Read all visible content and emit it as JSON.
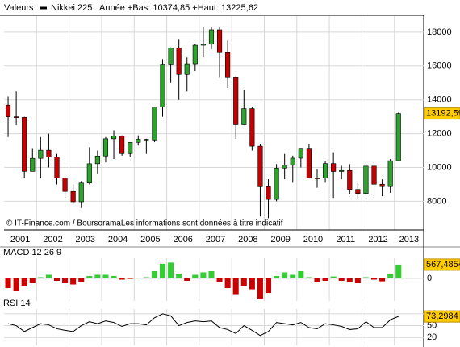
{
  "chart_data": [
    {
      "type": "candlestick",
      "title": "Valeurs",
      "subtitle": "Année +Bas: 10374,85 +Haut: 13225,62",
      "annotation": "© IT-Finance.com / BoursoramaLes informations sont données à titre indicatif",
      "series_name": "Nikkei 225",
      "x": [
        2001.125,
        2001.375,
        2001.625,
        2001.875,
        2002.125,
        2002.375,
        2002.625,
        2002.875,
        2003.125,
        2003.375,
        2003.625,
        2003.875,
        2004.125,
        2004.375,
        2004.625,
        2004.875,
        2005.125,
        2005.375,
        2005.625,
        2005.875,
        2006.125,
        2006.375,
        2006.625,
        2006.875,
        2007.125,
        2007.375,
        2007.625,
        2007.875,
        2008.125,
        2008.375,
        2008.625,
        2008.875,
        2009.125,
        2009.375,
        2009.625,
        2009.875,
        2010.125,
        2010.375,
        2010.625,
        2010.875,
        2011.125,
        2011.375,
        2011.625,
        2011.875,
        2012.125,
        2012.375,
        2012.625,
        2012.875,
        2013.125
      ],
      "open": [
        13690,
        13000,
        12970,
        9770,
        10540,
        11020,
        10620,
        9380,
        8580,
        7970,
        9080,
        10220,
        10680,
        11700,
        11860,
        10820,
        11490,
        11670,
        11580,
        13570,
        16110,
        17060,
        15500,
        16130,
        17230,
        17290,
        18140,
        16790,
        15310,
        12530,
        13480,
        11260,
        8860,
        8110,
        9960,
        10130,
        10550,
        11090,
        9380,
        9370,
        10230,
        9760,
        9820,
        8700,
        8460,
        10080,
        9010,
        8870,
        10400
      ],
      "high": [
        14200,
        14500,
        13000,
        11100,
        11800,
        12000,
        10800,
        9500,
        9000,
        9200,
        11200,
        11000,
        11800,
        12200,
        11900,
        11500,
        11900,
        11700,
        13600,
        16400,
        17100,
        17600,
        16500,
        17300,
        18300,
        18300,
        18300,
        17500,
        15400,
        14600,
        13600,
        11400,
        9300,
        10200,
        10800,
        10700,
        11100,
        11400,
        9900,
        10400,
        10900,
        10100,
        10200,
        9100,
        10300,
        10200,
        9300,
        10500,
        13250
      ],
      "low": [
        11800,
        12500,
        9400,
        9800,
        9400,
        10000,
        9000,
        8200,
        7850,
        7600,
        9000,
        9600,
        10300,
        10500,
        10700,
        10600,
        11300,
        10800,
        11500,
        13000,
        15000,
        14000,
        14500,
        15700,
        16500,
        17000,
        15300,
        14700,
        11700,
        12500,
        11000,
        7100,
        7000,
        8000,
        9300,
        9100,
        10000,
        9500,
        8800,
        9100,
        8200,
        9300,
        8400,
        8100,
        8300,
        8300,
        8300,
        8500,
        10400
      ],
      "close": [
        13000,
        12970,
        9770,
        10540,
        11020,
        10620,
        9380,
        8580,
        7970,
        9080,
        10220,
        10680,
        11700,
        11860,
        10820,
        11490,
        11670,
        11580,
        13570,
        16110,
        17060,
        15500,
        16130,
        17230,
        17290,
        18140,
        16790,
        15310,
        12530,
        13480,
        11260,
        8860,
        8110,
        9960,
        10130,
        10550,
        11090,
        9380,
        9370,
        10230,
        9760,
        9820,
        8700,
        8460,
        10080,
        9010,
        8870,
        10400,
        13193
      ],
      "up_color": "#2ea12e",
      "down_color": "#c40000",
      "xlim": [
        2001,
        2013.9
      ],
      "xticks": [
        2001,
        2002,
        2003,
        2004,
        2005,
        2006,
        2007,
        2008,
        2009,
        2010,
        2011,
        2012,
        2013
      ],
      "ylim": [
        6300,
        18950
      ],
      "yticks": [
        8000,
        10000,
        12000,
        14000,
        16000,
        18000
      ],
      "last_label": {
        "value": 13192.59,
        "label": "13192,59"
      },
      "grid": true
    },
    {
      "type": "bar",
      "title": "MACD 12 26 9",
      "x": [
        2001.125,
        2001.375,
        2001.625,
        2001.875,
        2002.125,
        2002.375,
        2002.625,
        2002.875,
        2003.125,
        2003.375,
        2003.625,
        2003.875,
        2004.125,
        2004.375,
        2004.625,
        2004.875,
        2005.125,
        2005.375,
        2005.625,
        2005.875,
        2006.125,
        2006.375,
        2006.625,
        2006.875,
        2007.125,
        2007.375,
        2007.625,
        2007.875,
        2008.125,
        2008.375,
        2008.625,
        2008.875,
        2009.125,
        2009.375,
        2009.625,
        2009.875,
        2010.125,
        2010.375,
        2010.625,
        2010.875,
        2011.125,
        2011.375,
        2011.625,
        2011.875,
        2012.125,
        2012.375,
        2012.625,
        2012.875,
        2013.125
      ],
      "values": [
        -400,
        -500,
        -300,
        -200,
        50,
        150,
        -100,
        -200,
        -250,
        -150,
        100,
        150,
        150,
        100,
        -50,
        -20,
        30,
        50,
        300,
        600,
        650,
        200,
        -100,
        150,
        250,
        300,
        -150,
        -400,
        -650,
        -300,
        -450,
        -830,
        -600,
        100,
        250,
        150,
        300,
        50,
        -150,
        -100,
        80,
        -100,
        -150,
        -200,
        50,
        -50,
        -120,
        200,
        567.4854
      ],
      "up_color": "#33cc33",
      "down_color": "#cc0000",
      "xlim": [
        2001,
        2013.9
      ],
      "ylim": [
        -930,
        830
      ],
      "yticks": [
        0
      ],
      "last_label": {
        "value": 567.4854,
        "label": "567,4854"
      }
    },
    {
      "type": "line",
      "title": "RSI 14",
      "x": [
        2001.125,
        2001.375,
        2001.625,
        2001.875,
        2002.125,
        2002.375,
        2002.625,
        2002.875,
        2003.125,
        2003.375,
        2003.625,
        2003.875,
        2004.125,
        2004.375,
        2004.625,
        2004.875,
        2005.125,
        2005.375,
        2005.625,
        2005.875,
        2006.125,
        2006.375,
        2006.625,
        2006.875,
        2007.125,
        2007.375,
        2007.625,
        2007.875,
        2008.125,
        2008.375,
        2008.625,
        2008.875,
        2009.125,
        2009.375,
        2009.625,
        2009.875,
        2010.125,
        2010.375,
        2010.625,
        2010.875,
        2011.125,
        2011.375,
        2011.625,
        2011.875,
        2012.125,
        2012.375,
        2012.625,
        2012.875,
        2013.125
      ],
      "values": [
        55,
        50,
        35,
        45,
        55,
        52,
        42,
        38,
        35,
        50,
        60,
        55,
        62,
        58,
        48,
        55,
        55,
        52,
        70,
        80,
        75,
        50,
        58,
        62,
        60,
        62,
        45,
        40,
        30,
        50,
        38,
        25,
        35,
        58,
        55,
        52,
        58,
        45,
        42,
        55,
        52,
        48,
        40,
        42,
        60,
        45,
        45,
        65,
        73.2984
      ],
      "color": "#000000",
      "xlim": [
        2001,
        2013.9
      ],
      "ylim": [
        0,
        92
      ],
      "yticks": [
        20,
        50,
        80
      ],
      "last_label": {
        "value": 73.2984,
        "label": "73,2984"
      }
    }
  ]
}
